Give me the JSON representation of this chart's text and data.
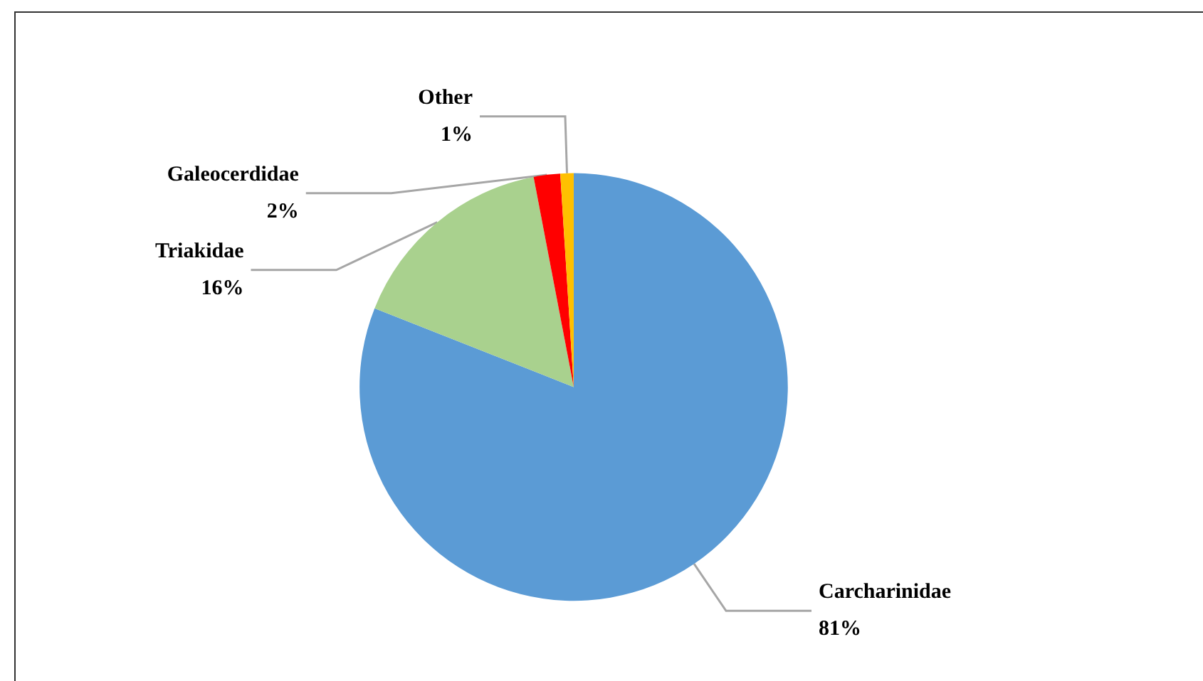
{
  "chart_data": {
    "type": "pie",
    "categories": [
      "Carcharinidae",
      "Triakidae",
      "Galeocerdidae",
      "Other"
    ],
    "values": [
      81,
      16,
      2,
      1
    ],
    "colors": [
      "#5b9bd5",
      "#a9d18e",
      "#ff0000",
      "#ffc000"
    ],
    "value_labels": [
      "81%",
      "16%",
      "2%",
      "1%"
    ],
    "legend": false
  }
}
